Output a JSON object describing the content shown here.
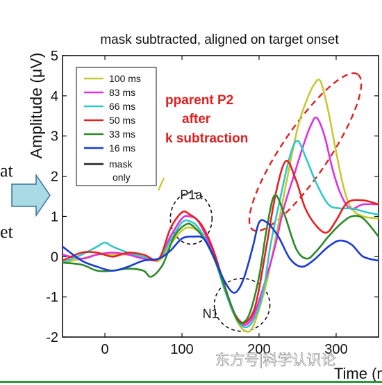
{
  "chart_data": {
    "type": "line",
    "title": "mask subtracted, aligned on target onset",
    "ylabel": "Amplitude (μV)",
    "xlabel": "Time (ms)",
    "xlim": [
      -55,
      355
    ],
    "ylim": [
      -2,
      5
    ],
    "xticks": [
      0,
      100,
      200,
      300
    ],
    "yticks": [
      -2,
      -1,
      0,
      1,
      2,
      3,
      4,
      5
    ],
    "ytick_labels": [
      "-2",
      "-1",
      "0",
      "1",
      "2",
      "3",
      "4",
      "5"
    ],
    "xtick_labels": [
      "0",
      "100",
      "200",
      "300"
    ],
    "legend_position": "top-left",
    "series": [
      {
        "name": "100 ms",
        "color": "#c8c832",
        "points": [
          [
            -55,
            -0.15
          ],
          [
            -30,
            -0.05
          ],
          [
            -10,
            0.05
          ],
          [
            10,
            0.05
          ],
          [
            30,
            0.05
          ],
          [
            50,
            0.0
          ],
          [
            70,
            -0.1
          ],
          [
            85,
            0.3
          ],
          [
            100,
            0.65
          ],
          [
            112,
            0.72
          ],
          [
            125,
            0.55
          ],
          [
            140,
            0.1
          ],
          [
            155,
            -0.8
          ],
          [
            170,
            -1.55
          ],
          [
            182,
            -1.85
          ],
          [
            192,
            -1.75
          ],
          [
            205,
            -1.0
          ],
          [
            212,
            -0.45
          ],
          [
            222,
            0.5
          ],
          [
            235,
            1.8
          ],
          [
            250,
            3.2
          ],
          [
            262,
            3.9
          ],
          [
            272,
            4.3
          ],
          [
            280,
            4.35
          ],
          [
            290,
            3.6
          ],
          [
            300,
            2.6
          ],
          [
            310,
            1.7
          ],
          [
            320,
            1.2
          ],
          [
            335,
            1.0
          ],
          [
            355,
            0.95
          ]
        ]
      },
      {
        "name": "83 ms",
        "color": "#e030e0",
        "points": [
          [
            -55,
            0.05
          ],
          [
            -30,
            -0.05
          ],
          [
            -10,
            0.05
          ],
          [
            10,
            0.1
          ],
          [
            30,
            0.05
          ],
          [
            50,
            -0.05
          ],
          [
            70,
            -0.05
          ],
          [
            85,
            0.5
          ],
          [
            100,
            0.95
          ],
          [
            110,
            1.0
          ],
          [
            122,
            0.85
          ],
          [
            140,
            0.1
          ],
          [
            155,
            -0.8
          ],
          [
            168,
            -1.45
          ],
          [
            180,
            -1.7
          ],
          [
            192,
            -1.5
          ],
          [
            205,
            -0.8
          ],
          [
            220,
            0.2
          ],
          [
            232,
            1.2
          ],
          [
            245,
            2.0
          ],
          [
            258,
            2.8
          ],
          [
            268,
            3.3
          ],
          [
            275,
            3.45
          ],
          [
            285,
            3.0
          ],
          [
            295,
            2.2
          ],
          [
            305,
            1.6
          ],
          [
            318,
            1.2
          ],
          [
            335,
            1.3
          ],
          [
            355,
            1.3
          ]
        ]
      },
      {
        "name": "66 ms",
        "color": "#30c8c8",
        "points": [
          [
            -55,
            -0.15
          ],
          [
            -30,
            0.05
          ],
          [
            -10,
            0.25
          ],
          [
            0,
            0.35
          ],
          [
            10,
            0.25
          ],
          [
            30,
            0.1
          ],
          [
            50,
            0.0
          ],
          [
            70,
            -0.05
          ],
          [
            85,
            0.4
          ],
          [
            100,
            0.85
          ],
          [
            110,
            0.88
          ],
          [
            122,
            0.7
          ],
          [
            140,
            0.05
          ],
          [
            155,
            -0.8
          ],
          [
            168,
            -1.45
          ],
          [
            180,
            -1.75
          ],
          [
            192,
            -1.6
          ],
          [
            205,
            -0.9
          ],
          [
            215,
            0.3
          ],
          [
            228,
            1.5
          ],
          [
            240,
            2.5
          ],
          [
            250,
            2.88
          ],
          [
            262,
            2.4
          ],
          [
            275,
            1.8
          ],
          [
            290,
            1.3
          ],
          [
            305,
            1.2
          ],
          [
            320,
            1.2
          ],
          [
            340,
            1.1
          ],
          [
            355,
            1.05
          ]
        ]
      },
      {
        "name": "50 ms",
        "color": "#e82020",
        "points": [
          [
            -55,
            -0.1
          ],
          [
            -30,
            0.1
          ],
          [
            -10,
            0.1
          ],
          [
            10,
            0.0
          ],
          [
            30,
            0.1
          ],
          [
            50,
            0.05
          ],
          [
            70,
            -0.05
          ],
          [
            85,
            0.7
          ],
          [
            100,
            1.1
          ],
          [
            110,
            1.05
          ],
          [
            125,
            0.8
          ],
          [
            140,
            0.2
          ],
          [
            155,
            -0.7
          ],
          [
            168,
            -1.4
          ],
          [
            180,
            -1.65
          ],
          [
            192,
            -1.4
          ],
          [
            200,
            -0.8
          ],
          [
            210,
            0.3
          ],
          [
            222,
            1.6
          ],
          [
            235,
            2.38
          ],
          [
            248,
            1.9
          ],
          [
            260,
            1.2
          ],
          [
            275,
            0.75
          ],
          [
            288,
            0.6
          ],
          [
            300,
            0.9
          ],
          [
            315,
            1.35
          ],
          [
            335,
            1.4
          ],
          [
            355,
            1.3
          ]
        ]
      },
      {
        "name": "33 ms",
        "color": "#2a8a2a",
        "points": [
          [
            -55,
            -0.15
          ],
          [
            -30,
            -0.2
          ],
          [
            -10,
            -0.35
          ],
          [
            10,
            -0.35
          ],
          [
            30,
            -0.3
          ],
          [
            50,
            -0.35
          ],
          [
            60,
            -0.5
          ],
          [
            75,
            -0.2
          ],
          [
            90,
            0.5
          ],
          [
            105,
            0.8
          ],
          [
            115,
            0.75
          ],
          [
            130,
            0.4
          ],
          [
            145,
            -0.2
          ],
          [
            158,
            -0.9
          ],
          [
            170,
            -1.5
          ],
          [
            178,
            -1.65
          ],
          [
            188,
            -1.4
          ],
          [
            200,
            -0.5
          ],
          [
            210,
            0.7
          ],
          [
            220,
            1.52
          ],
          [
            232,
            1.1
          ],
          [
            248,
            0.2
          ],
          [
            262,
            -0.05
          ],
          [
            275,
            0.15
          ],
          [
            290,
            0.5
          ],
          [
            305,
            0.8
          ],
          [
            320,
            1.0
          ],
          [
            335,
            0.95
          ],
          [
            355,
            0.5
          ]
        ]
      },
      {
        "name": "16 ms",
        "color": "#1a3ad8",
        "points": [
          [
            -55,
            0.25
          ],
          [
            -30,
            -0.1
          ],
          [
            -10,
            -0.25
          ],
          [
            10,
            -0.35
          ],
          [
            30,
            -0.25
          ],
          [
            50,
            -0.1
          ],
          [
            70,
            -0.05
          ],
          [
            85,
            0.15
          ],
          [
            100,
            0.45
          ],
          [
            115,
            0.5
          ],
          [
            128,
            0.45
          ],
          [
            140,
            0.05
          ],
          [
            155,
            -0.6
          ],
          [
            168,
            -0.9
          ],
          [
            180,
            -0.55
          ],
          [
            192,
            0.25
          ],
          [
            200,
            0.85
          ],
          [
            210,
            0.85
          ],
          [
            225,
            0.5
          ],
          [
            240,
            -0.05
          ],
          [
            255,
            -0.25
          ],
          [
            270,
            -0.1
          ],
          [
            290,
            0.25
          ],
          [
            305,
            0.4
          ],
          [
            320,
            0.3
          ],
          [
            335,
            0.0
          ],
          [
            355,
            -0.1
          ]
        ]
      },
      {
        "name": "mask only",
        "color": "#222222",
        "points": []
      }
    ],
    "annotations": [
      {
        "text": "P1a",
        "x": 112,
        "y": 1.55
      },
      {
        "text": "N1",
        "x": 137,
        "y": -1.4
      }
    ],
    "red_text_lines": [
      "pparent P2",
      "after",
      "k subtraction"
    ]
  },
  "overlay": {
    "left_text_top": "at",
    "left_text_bottom": "et",
    "watermark": "东方号|科学认识论"
  }
}
